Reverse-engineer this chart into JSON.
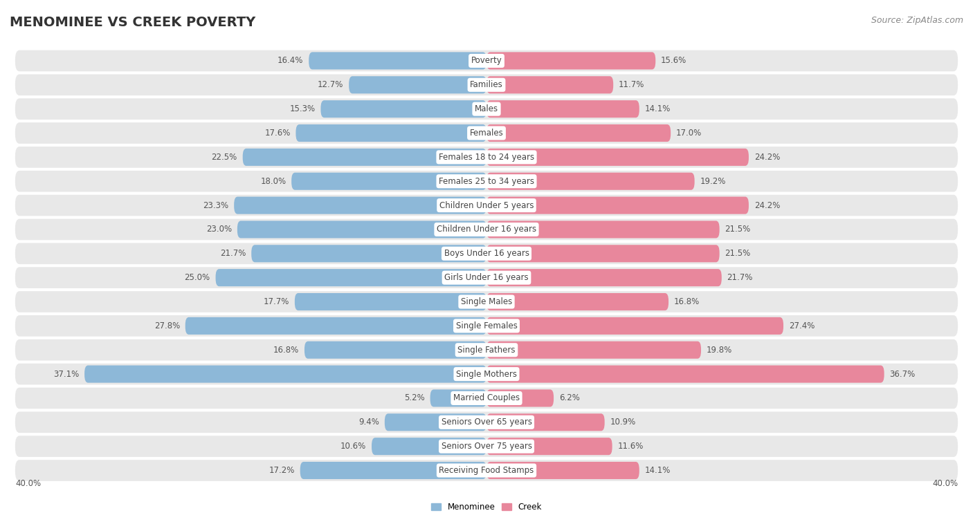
{
  "title": "MENOMINEE VS CREEK POVERTY",
  "source": "Source: ZipAtlas.com",
  "categories": [
    "Poverty",
    "Families",
    "Males",
    "Females",
    "Females 18 to 24 years",
    "Females 25 to 34 years",
    "Children Under 5 years",
    "Children Under 16 years",
    "Boys Under 16 years",
    "Girls Under 16 years",
    "Single Males",
    "Single Females",
    "Single Fathers",
    "Single Mothers",
    "Married Couples",
    "Seniors Over 65 years",
    "Seniors Over 75 years",
    "Receiving Food Stamps"
  ],
  "menominee": [
    16.4,
    12.7,
    15.3,
    17.6,
    22.5,
    18.0,
    23.3,
    23.0,
    21.7,
    25.0,
    17.7,
    27.8,
    16.8,
    37.1,
    5.2,
    9.4,
    10.6,
    17.2
  ],
  "creek": [
    15.6,
    11.7,
    14.1,
    17.0,
    24.2,
    19.2,
    24.2,
    21.5,
    21.5,
    21.7,
    16.8,
    27.4,
    19.8,
    36.7,
    6.2,
    10.9,
    11.6,
    14.1
  ],
  "menominee_color": "#8db8d8",
  "creek_color": "#e8879c",
  "menominee_label": "Menominee",
  "creek_label": "Creek",
  "axis_max": 40.0,
  "bg_color": "#ffffff",
  "row_bg_color": "#e8e8e8",
  "title_fontsize": 14,
  "label_fontsize": 8.5,
  "value_fontsize": 8.5,
  "source_fontsize": 9
}
